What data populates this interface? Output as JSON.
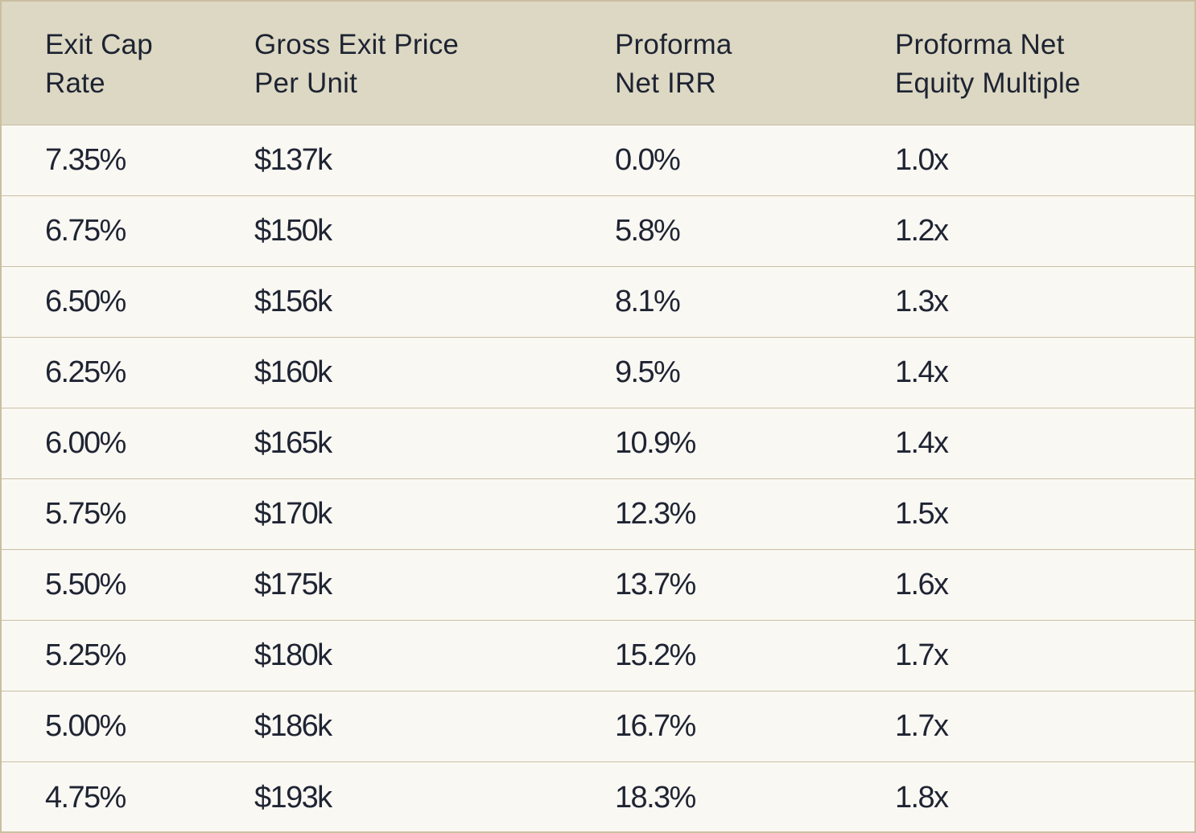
{
  "table": {
    "headers": [
      {
        "line1": "Exit Cap",
        "line2": "Rate"
      },
      {
        "line1": "Gross Exit Price",
        "line2": "Per Unit"
      },
      {
        "line1": "Proforma",
        "line2": "Net IRR"
      },
      {
        "line1": "Proforma Net",
        "line2": "Equity Multiple"
      }
    ],
    "rows": [
      [
        "7.35%",
        "$137k",
        "0.0%",
        "1.0x"
      ],
      [
        "6.75%",
        "$150k",
        "5.8%",
        "1.2x"
      ],
      [
        "6.50%",
        "$156k",
        "8.1%",
        "1.3x"
      ],
      [
        "6.25%",
        "$160k",
        "9.5%",
        "1.4x"
      ],
      [
        "6.00%",
        "$165k",
        "10.9%",
        "1.4x"
      ],
      [
        "5.75%",
        "$170k",
        "12.3%",
        "1.5x"
      ],
      [
        "5.50%",
        "$175k",
        "13.7%",
        "1.6x"
      ],
      [
        "5.25%",
        "$180k",
        "15.2%",
        "1.7x"
      ],
      [
        "5.00%",
        "$186k",
        "16.7%",
        "1.7x"
      ],
      [
        "4.75%",
        "$193k",
        "18.3%",
        "1.8x"
      ]
    ],
    "colors": {
      "header_bg": "#ddd8c3",
      "body_bg": "#faf8f3",
      "border": "#c9bfa1",
      "text": "#1f2433"
    }
  }
}
